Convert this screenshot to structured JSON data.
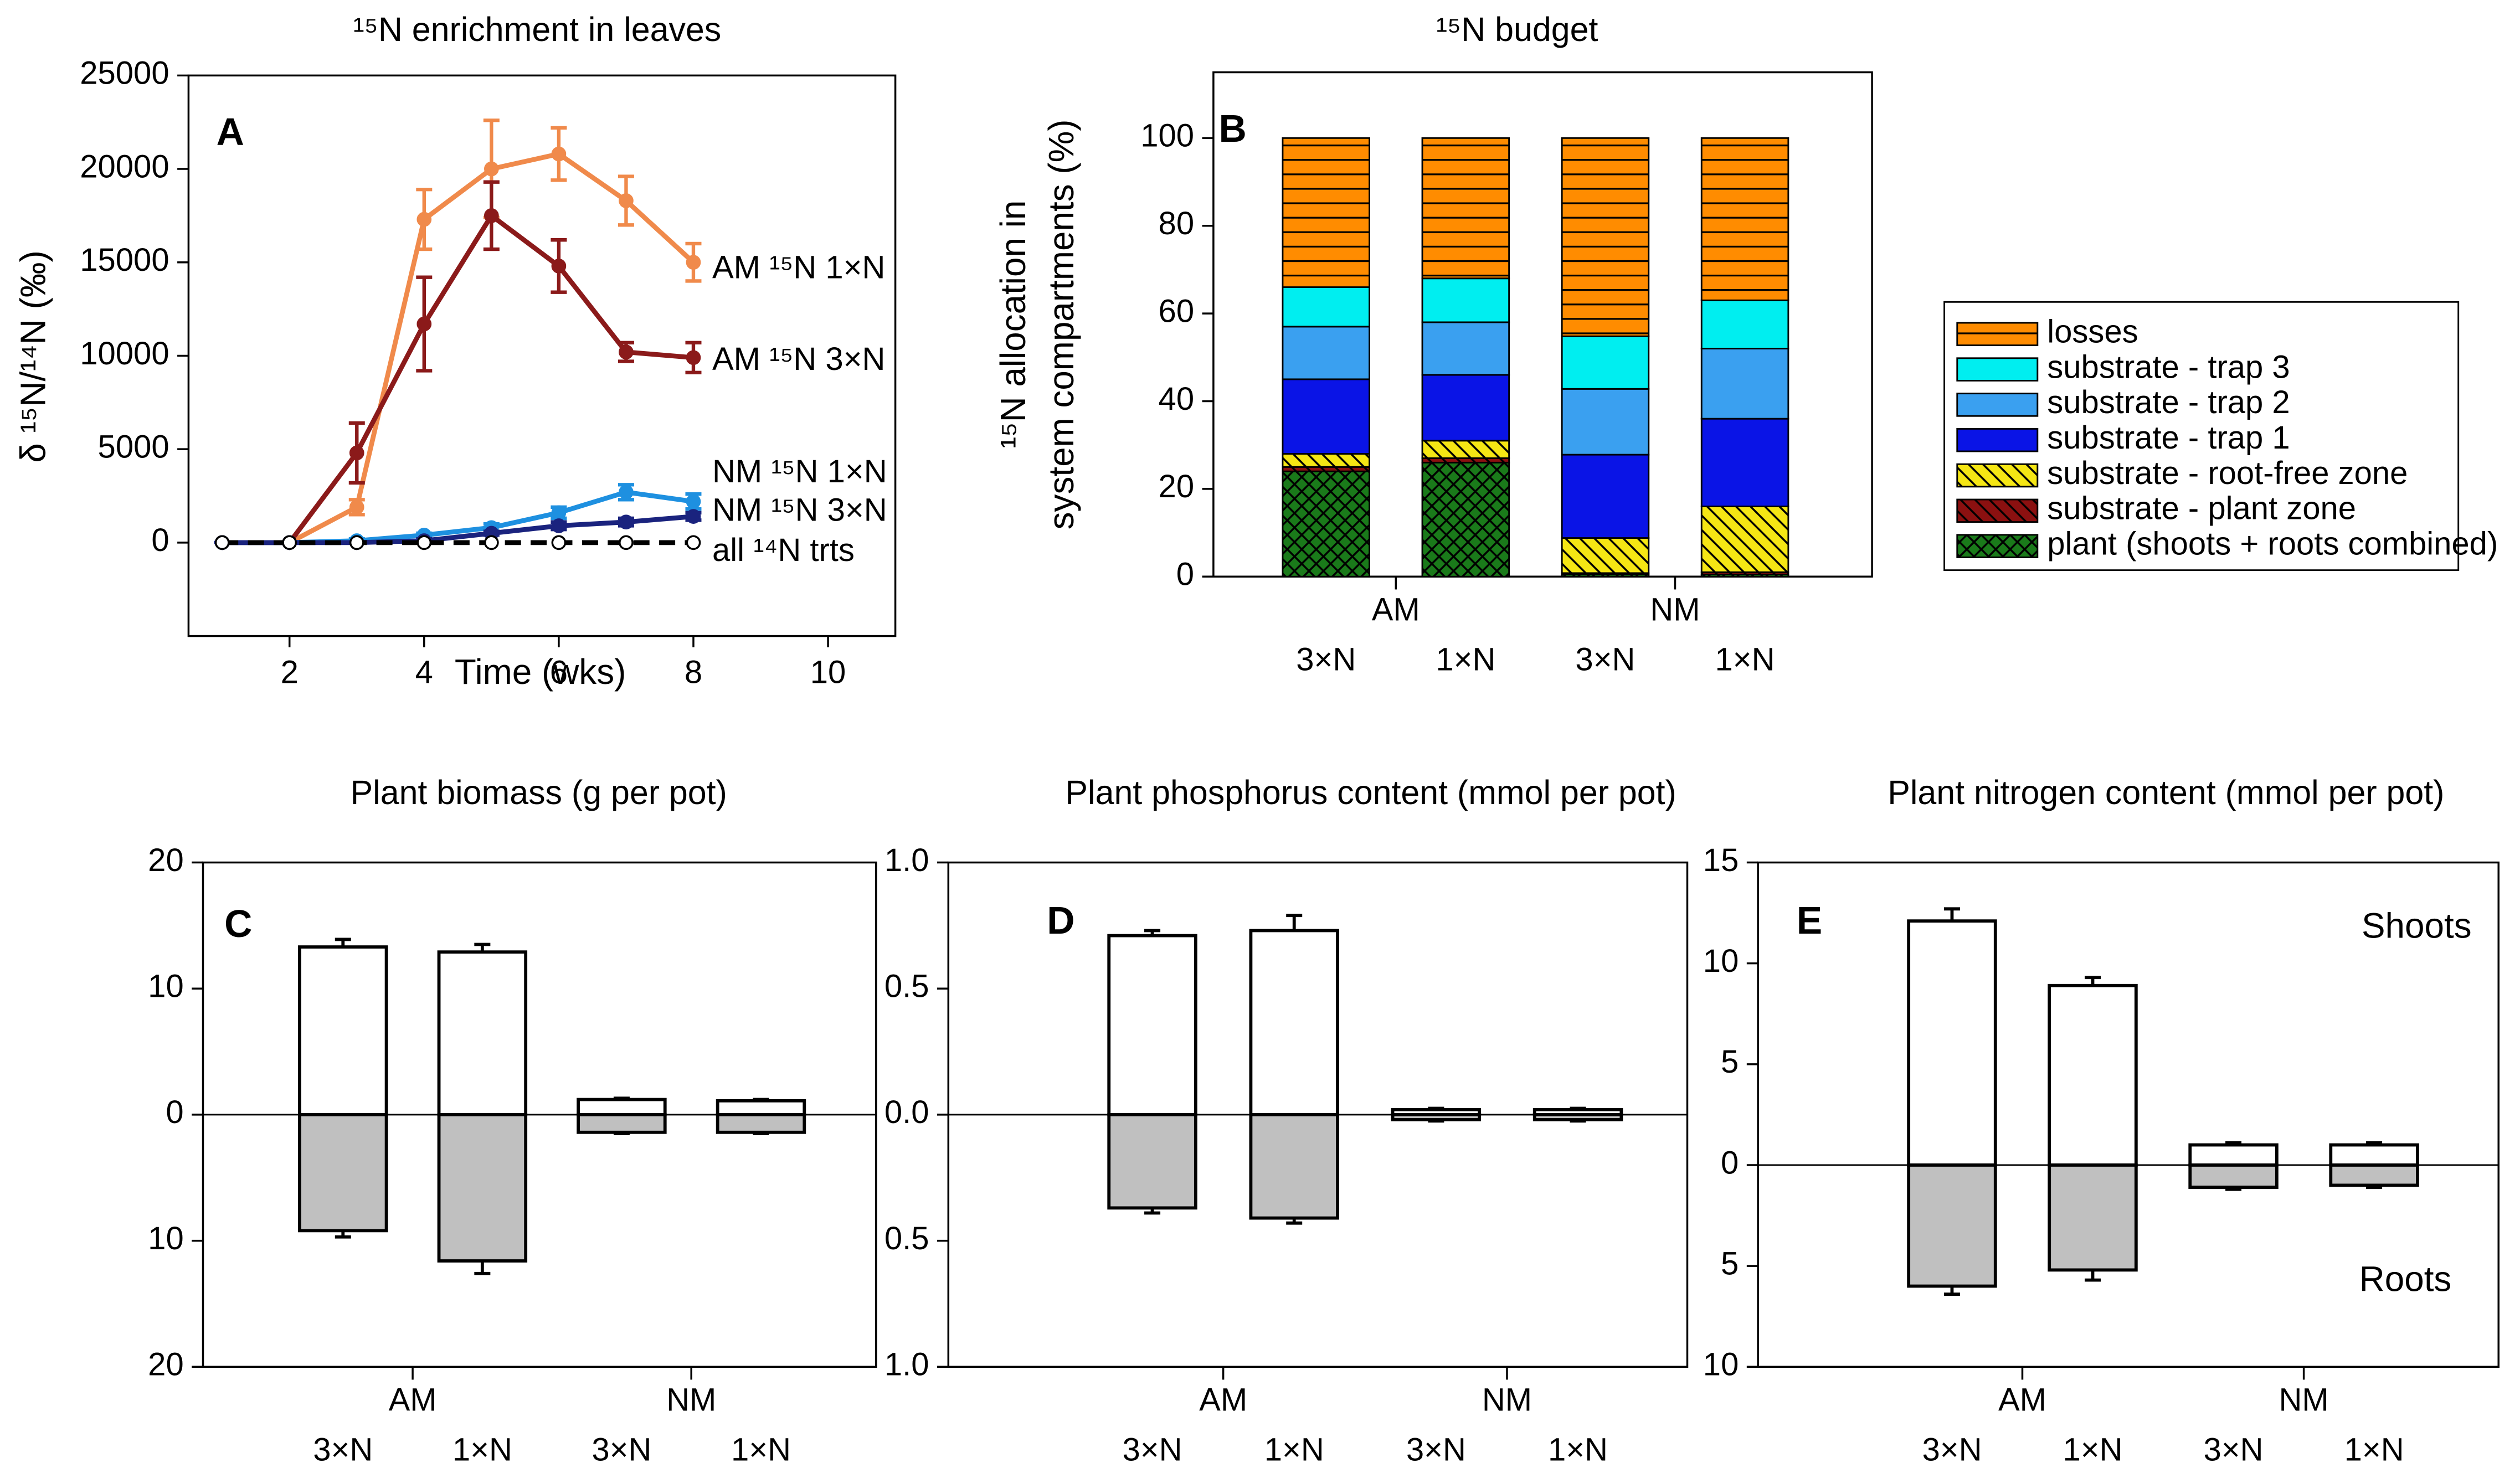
{
  "chart_data": [
    {
      "type": "line",
      "panel": "A",
      "title": "¹⁵N enrichment in leaves",
      "xlabel": "Time (wks)",
      "ylabel": "δ ¹⁵N/¹⁴N (‰)",
      "x": [
        1,
        2,
        3,
        4,
        5,
        6,
        7,
        8
      ],
      "xlim": [
        0.5,
        11
      ],
      "xticks": [
        2,
        4,
        6,
        8,
        10
      ],
      "ylim": [
        -5000,
        25000
      ],
      "yticks": [
        0,
        5000,
        10000,
        15000,
        20000,
        25000
      ],
      "series": [
        {
          "name": "AM ¹⁵N 1×N",
          "color": "#f08a4b",
          "values": [
            0,
            0,
            1900,
            17300,
            20000,
            20800,
            18300,
            15000
          ],
          "errors": [
            0,
            0,
            400,
            1600,
            2600,
            1400,
            1300,
            1000
          ]
        },
        {
          "name": "AM ¹⁵N 3×N",
          "color": "#8b1a1a",
          "values": [
            0,
            0,
            4800,
            11700,
            17500,
            14800,
            10200,
            9900
          ],
          "errors": [
            0,
            0,
            1600,
            2500,
            1800,
            1400,
            500,
            800
          ]
        },
        {
          "name": "NM ¹⁵N 1×N",
          "color": "#1e90e0",
          "values": [
            0,
            0,
            100,
            400,
            800,
            1600,
            2700,
            2200
          ],
          "errors": [
            0,
            0,
            100,
            100,
            200,
            300,
            400,
            400
          ]
        },
        {
          "name": "NM ¹⁵N 3×N",
          "color": "#1a237e",
          "values": [
            0,
            0,
            0,
            100,
            500,
            900,
            1100,
            1400
          ],
          "errors": [
            0,
            0,
            0,
            100,
            100,
            200,
            200,
            200
          ]
        },
        {
          "name": "all ¹⁴N trts",
          "color": "#000000",
          "marker_fill": "#ffffff",
          "dash": true,
          "values": [
            0,
            0,
            0,
            0,
            0,
            0,
            0,
            0
          ]
        }
      ]
    },
    {
      "type": "stacked_bar",
      "panel": "B",
      "title": "¹⁵N budget",
      "ylabel": [
        "¹⁵N allocation in",
        "system compartments (%)"
      ],
      "groups": [
        "AM",
        "NM"
      ],
      "categories": [
        "3×N",
        "1×N",
        "3×N",
        "1×N"
      ],
      "ylim": [
        0,
        115
      ],
      "yticks": [
        0,
        20,
        40,
        60,
        80,
        100
      ],
      "legend": "right",
      "series": [
        {
          "name": "losses",
          "color": "#ff8c00",
          "hatch": "horizontal",
          "values": [
            34,
            32,
            45.2,
            37
          ]
        },
        {
          "name": "substrate - trap 3",
          "color": "#00eef0",
          "values": [
            9,
            10,
            12,
            11
          ]
        },
        {
          "name": "substrate - trap 2",
          "color": "#3aa0f0",
          "values": [
            12,
            12,
            15,
            16
          ]
        },
        {
          "name": "substrate - trap 1",
          "color": "#0a14e6",
          "values": [
            17,
            15,
            19,
            20
          ]
        },
        {
          "name": "substrate - root-free zone",
          "color": "#f5e614",
          "hatch": "diagonal",
          "values": [
            3,
            4,
            8,
            15
          ]
        },
        {
          "name": "substrate - plant zone",
          "color": "#8b1010",
          "hatch": "diagonal",
          "values": [
            1,
            1,
            0.3,
            0.5
          ]
        },
        {
          "name": "plant (shoots + roots combined)",
          "color": "#1a7a1a",
          "hatch": "cross",
          "values": [
            24,
            26,
            0.5,
            0.5
          ]
        }
      ]
    },
    {
      "type": "bar",
      "panel": "C",
      "title": "Plant biomass (g per pot)",
      "groups": [
        "AM",
        "NM"
      ],
      "categories": [
        "3×N",
        "1×N",
        "3×N",
        "1×N"
      ],
      "ylim": [
        -20,
        20
      ],
      "yticks": [
        {
          "value": -20,
          "label": "20"
        },
        {
          "value": -10,
          "label": "10"
        },
        0,
        10,
        20
      ],
      "series": [
        {
          "color": "#ffffff",
          "values": [
            13.3,
            12.9,
            1.2,
            1.1
          ],
          "errors": [
            0.6,
            0.6,
            0.1,
            0.1
          ]
        },
        {
          "color": "#c0c0c0",
          "values": [
            -9.2,
            -11.6,
            -1.4,
            -1.4
          ],
          "errors": [
            0.5,
            1.0,
            0.1,
            0.1
          ]
        }
      ]
    },
    {
      "type": "bar",
      "panel": "D",
      "title": "Plant phosphorus content (mmol per pot)",
      "groups": [
        "AM",
        "NM"
      ],
      "categories": [
        "3×N",
        "1×N",
        "3×N",
        "1×N"
      ],
      "ylim": [
        -1,
        1
      ],
      "yticks": [
        {
          "value": -1,
          "label": "1.0"
        },
        {
          "value": -0.5,
          "label": "0.5"
        },
        {
          "value": 0,
          "label": "0.0"
        },
        0.5,
        {
          "value": 1,
          "label": "1.0"
        }
      ],
      "series": [
        {
          "color": "#ffffff",
          "values": [
            0.71,
            0.73,
            0.02,
            0.02
          ],
          "errors": [
            0.02,
            0.06,
            0.005,
            0.005
          ]
        },
        {
          "color": "#c0c0c0",
          "values": [
            -0.37,
            -0.41,
            -0.02,
            -0.02
          ],
          "errors": [
            0.02,
            0.02,
            0.005,
            0.005
          ]
        }
      ]
    },
    {
      "type": "bar",
      "panel": "E",
      "title": "Plant nitrogen content (mmol per pot)",
      "groups": [
        "AM",
        "NM"
      ],
      "categories": [
        "3×N",
        "1×N",
        "3×N",
        "1×N"
      ],
      "ylim": [
        -10,
        15
      ],
      "yticks": [
        {
          "value": -10,
          "label": "10"
        },
        {
          "value": -5,
          "label": "5"
        },
        0,
        5,
        10,
        15
      ],
      "annotations": [
        "Shoots",
        "Roots"
      ],
      "series": [
        {
          "color": "#ffffff",
          "values": [
            12.1,
            8.9,
            1.0,
            1.0
          ],
          "errors": [
            0.6,
            0.4,
            0.1,
            0.1
          ]
        },
        {
          "color": "#c0c0c0",
          "values": [
            -6.0,
            -5.2,
            -1.1,
            -1.0
          ],
          "errors": [
            0.4,
            0.5,
            0.1,
            0.1
          ]
        }
      ]
    }
  ]
}
